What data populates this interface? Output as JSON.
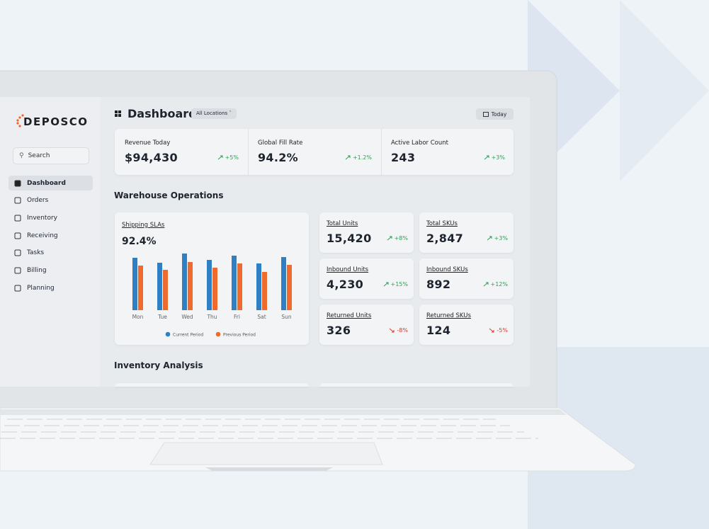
{
  "brand": "DEPOSCO",
  "sidebar": {
    "search": "Search",
    "nav": [
      "Dashboard",
      "Orders",
      "Inventory",
      "Receiving",
      "Tasks",
      "Billing",
      "Planning"
    ]
  },
  "header": {
    "title": "Dashboard",
    "location": "All Locations",
    "date": "Today"
  },
  "kpis": [
    {
      "label": "Revenue Today",
      "value": "$94,430",
      "change": "+5%"
    },
    {
      "label": "Global Fill Rate",
      "value": "94.2%",
      "change": "+1.2%"
    },
    {
      "label": "Active Labor Count",
      "value": "243",
      "change": "+3%"
    }
  ],
  "sections": {
    "operations": "Warehouse Operations",
    "inventory": "Inventory Analysis"
  },
  "cards": [
    {
      "label": "Total Units",
      "value": "15,420",
      "change": "+8%",
      "trend": "up"
    },
    {
      "label": "Total SKUs",
      "value": "2,847",
      "change": "+3%",
      "trend": "up"
    },
    {
      "label": "Inbound Units",
      "value": "4,230",
      "change": "+15%",
      "trend": "up"
    },
    {
      "label": "Inbound SKUs",
      "value": "892",
      "change": "+12%",
      "trend": "up"
    },
    {
      "label": "Returned Units",
      "value": "326",
      "change": "-8%",
      "trend": "down"
    },
    {
      "label": "Returned SKUs",
      "value": "124",
      "change": "-5%",
      "trend": "down"
    }
  ],
  "chart_data": {
    "type": "bar",
    "title": "Shipping SLAs",
    "subtitle": "92.4%",
    "categories": [
      "Mon",
      "Tue",
      "Wed",
      "Thu",
      "Fri",
      "Sat",
      "Sun"
    ],
    "series": [
      {
        "name": "Current Period",
        "color": "#2f7fc4",
        "values": [
          74,
          67,
          80,
          71,
          77,
          66,
          75
        ]
      },
      {
        "name": "Previous Period",
        "color": "#ee6b2d",
        "values": [
          63,
          57,
          68,
          60,
          66,
          54,
          64
        ]
      }
    ],
    "ylim": [
      0,
      100
    ]
  }
}
